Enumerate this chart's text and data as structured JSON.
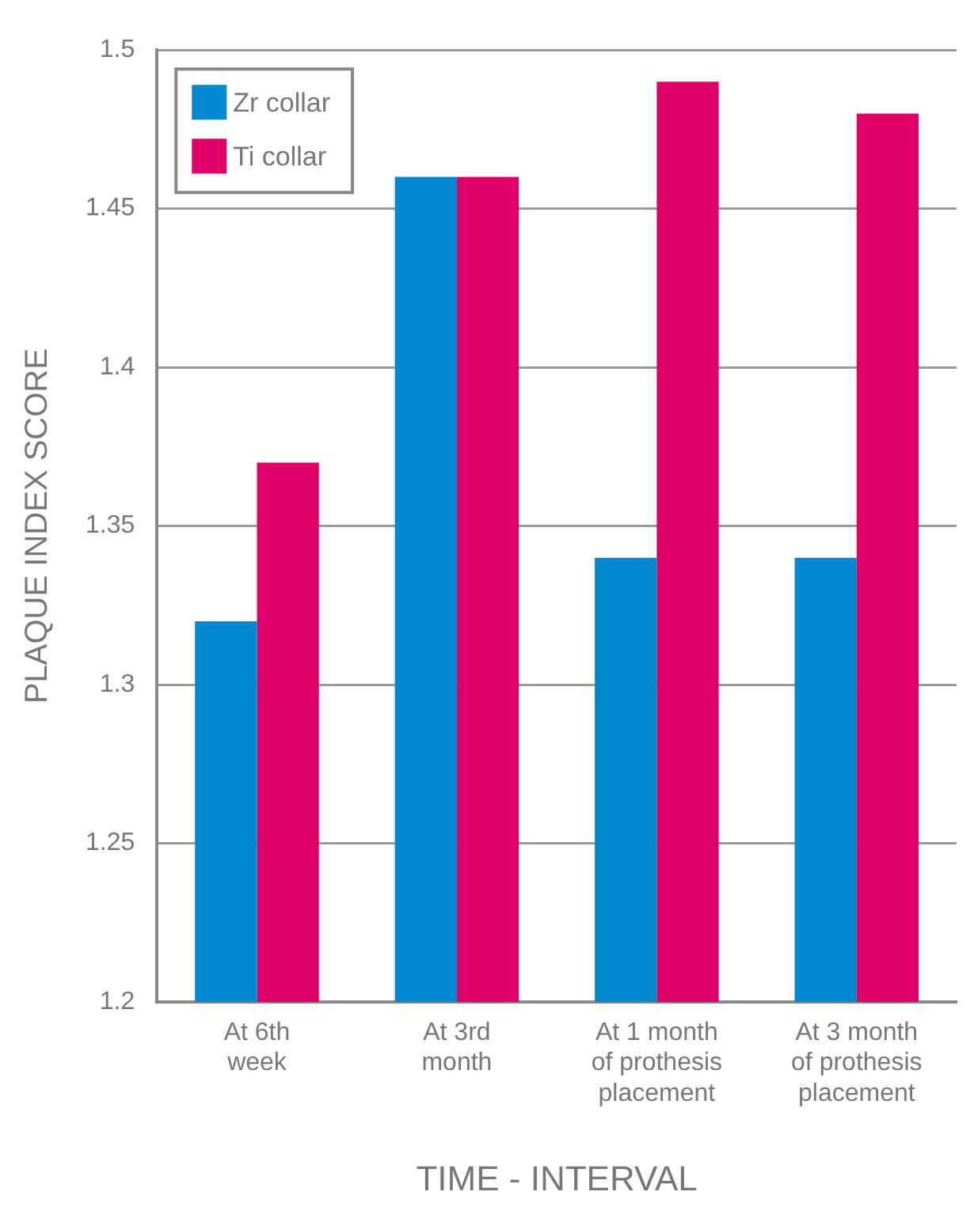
{
  "chart_data": {
    "type": "bar",
    "xlabel": "TIME - INTERVAL",
    "ylabel": "PLAQUE INDEX SCORE",
    "categories": [
      "At 6th\nweek",
      "At 3rd\nmonth",
      "At 1 month\nof prothesis\nplacement",
      "At 3 month\nof prothesis\nplacement"
    ],
    "series": [
      {
        "name": "Zr collar",
        "color": "#0089d0",
        "values": [
          1.32,
          1.46,
          1.34,
          1.34
        ]
      },
      {
        "name": "Ti collar",
        "color": "#e0006a",
        "values": [
          1.37,
          1.46,
          1.49,
          1.48
        ]
      }
    ],
    "ylim": [
      1.2,
      1.5
    ],
    "yticks": [
      1.2,
      1.25,
      1.3,
      1.35,
      1.4,
      1.45,
      1.5
    ],
    "grid": "y",
    "legend": "top left"
  }
}
